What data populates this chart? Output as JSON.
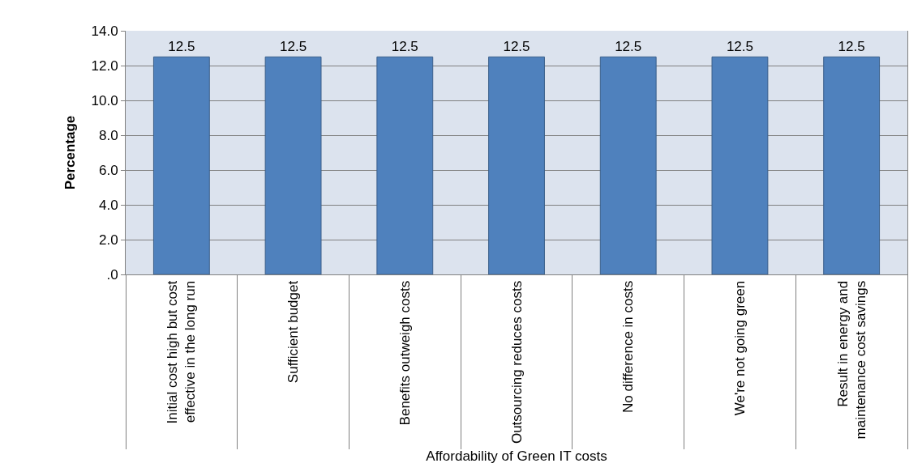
{
  "chart_data": {
    "type": "bar",
    "xlabel": "Affordability of Green IT costs",
    "ylabel": "Percentage",
    "categories": [
      "Initial cost high but cost effective in the long run",
      "Sufficient budget",
      "Benefits outweigh costs",
      "Outsourcing reduces costs",
      "No difference in costs",
      "We're not going green",
      "Result in energy and maintenance cost savings"
    ],
    "values": [
      12.5,
      12.5,
      12.5,
      12.5,
      12.5,
      12.5,
      12.5
    ],
    "color": "#4f81bd",
    "data_labels": true,
    "grid": "y",
    "legend": false,
    "ylim": [
      0,
      14
    ],
    "yticks": [
      {
        "value": 0,
        "label": ".0"
      },
      {
        "value": 2,
        "label": "2.0"
      },
      {
        "value": 4,
        "label": "4.0"
      },
      {
        "value": 6,
        "label": "6.0"
      },
      {
        "value": 8,
        "label": "8.0"
      },
      {
        "value": 10,
        "label": "10.0"
      },
      {
        "value": 12,
        "label": "12.0"
      },
      {
        "value": 14,
        "label": "14.0"
      }
    ]
  }
}
